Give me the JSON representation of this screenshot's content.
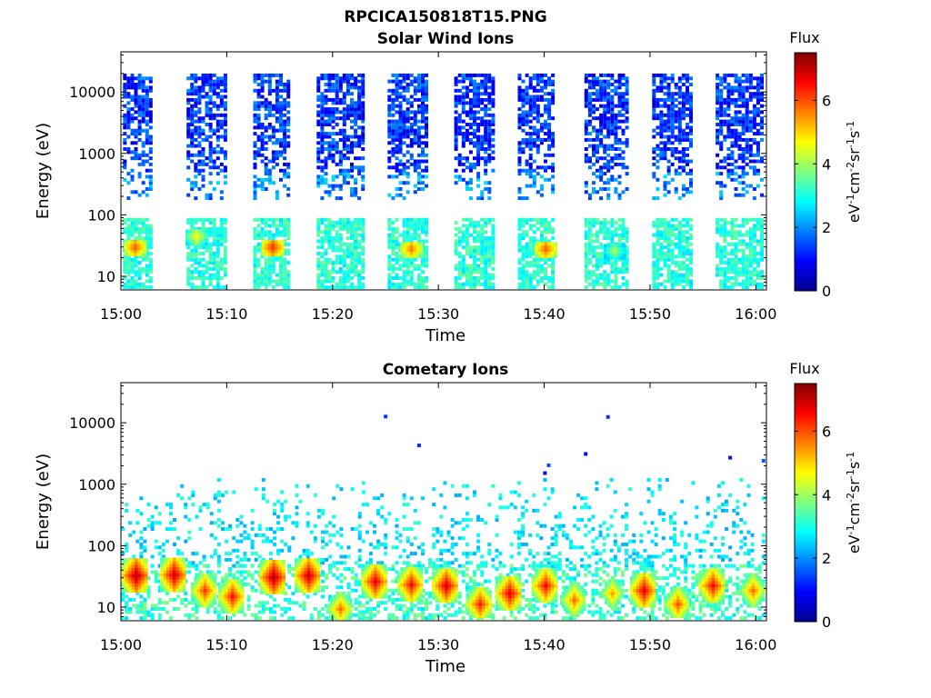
{
  "figure": {
    "title": "RPCICA150818T15.PNG"
  },
  "chart_data": [
    {
      "type": "heatmap",
      "title": "Solar Wind Ions",
      "xlabel": "Time",
      "ylabel": "Energy (eV)",
      "yscale": "log",
      "ylim": [
        6,
        45000
      ],
      "xlim": [
        "15:00",
        "16:01"
      ],
      "x_ticks": [
        "15:00",
        "15:10",
        "15:20",
        "15:30",
        "15:40",
        "15:50",
        "16:00"
      ],
      "y_ticks": [
        "10",
        "100",
        "1000",
        "10000"
      ],
      "grid": false,
      "colorbar": {
        "title": "Flux",
        "label": "eV-1cm-2sr-1s-1",
        "range": [
          0,
          7.5
        ],
        "ticks": [
          "0",
          "2",
          "4",
          "6"
        ],
        "colormap": "jet"
      },
      "pattern": {
        "description_of_data": "periodic sweeps: high-energy low-flux band 200-30000 eV, low-energy core 6-80 eV",
        "active_intervals_min": [
          [
            0.2,
            3.0
          ],
          [
            6.2,
            9.8
          ],
          [
            12.5,
            15.8
          ],
          [
            18.5,
            22.8
          ],
          [
            25.2,
            28.8
          ],
          [
            31.5,
            35.2
          ],
          [
            37.5,
            41.0
          ],
          [
            43.8,
            47.8
          ],
          [
            50.2,
            54.0
          ],
          [
            56.2,
            60.8
          ]
        ],
        "peak_flux_points": [
          {
            "time_min": 1.2,
            "energy_eV": 32,
            "flux": 6.0
          },
          {
            "time_min": 7.0,
            "energy_eV": 48,
            "flux": 4.8
          },
          {
            "time_min": 14.2,
            "energy_eV": 32,
            "flux": 6.3
          },
          {
            "time_min": 27.3,
            "energy_eV": 30,
            "flux": 5.8
          },
          {
            "time_min": 40.0,
            "energy_eV": 30,
            "flux": 6.0
          },
          {
            "time_min": 46.5,
            "energy_eV": 28,
            "flux": 4.2
          }
        ],
        "typical_flux_high_energy": 1.2,
        "typical_flux_low_energy": 3.0
      }
    },
    {
      "type": "heatmap",
      "title": "Cometary Ions",
      "xlabel": "Time",
      "ylabel": "Energy (eV)",
      "yscale": "log",
      "ylim": [
        6,
        45000
      ],
      "xlim": [
        "15:00",
        "16:01"
      ],
      "x_ticks": [
        "15:00",
        "15:10",
        "15:20",
        "15:30",
        "15:40",
        "15:50",
        "16:00"
      ],
      "y_ticks": [
        "10",
        "100",
        "1000",
        "10000"
      ],
      "grid": false,
      "colorbar": {
        "title": "Flux",
        "label": "eV-1cm-2sr-1s-1",
        "range": [
          0,
          7.5
        ],
        "ticks": [
          "0",
          "2",
          "4",
          "6"
        ],
        "colormap": "jet"
      },
      "pattern": {
        "description_of_data": "strong core 10-60 eV with periodic red blobs; sparse scatter up to ~1000 eV",
        "blob_centers": [
          {
            "time_min": 1.3,
            "energy_eV": 35,
            "flux": 7.2
          },
          {
            "time_min": 4.9,
            "energy_eV": 36,
            "flux": 7.0
          },
          {
            "time_min": 7.8,
            "energy_eV": 20,
            "flux": 6.2
          },
          {
            "time_min": 10.4,
            "energy_eV": 16,
            "flux": 6.5
          },
          {
            "time_min": 14.3,
            "energy_eV": 33,
            "flux": 7.2
          },
          {
            "time_min": 17.6,
            "energy_eV": 35,
            "flux": 7.0
          },
          {
            "time_min": 20.6,
            "energy_eV": 10,
            "flux": 5.8
          },
          {
            "time_min": 23.9,
            "energy_eV": 28,
            "flux": 6.8
          },
          {
            "time_min": 27.3,
            "energy_eV": 25,
            "flux": 6.6
          },
          {
            "time_min": 30.6,
            "energy_eV": 24,
            "flux": 6.9
          },
          {
            "time_min": 33.8,
            "energy_eV": 12,
            "flux": 6.4
          },
          {
            "time_min": 36.6,
            "energy_eV": 18,
            "flux": 6.8
          },
          {
            "time_min": 40.0,
            "energy_eV": 24,
            "flux": 6.6
          },
          {
            "time_min": 42.7,
            "energy_eV": 14,
            "flux": 5.8
          },
          {
            "time_min": 46.3,
            "energy_eV": 18,
            "flux": 5.4
          },
          {
            "time_min": 49.3,
            "energy_eV": 20,
            "flux": 6.8
          },
          {
            "time_min": 52.5,
            "energy_eV": 12,
            "flux": 6.0
          },
          {
            "time_min": 55.8,
            "energy_eV": 24,
            "flux": 6.6
          },
          {
            "time_min": 59.6,
            "energy_eV": 20,
            "flux": 5.8
          }
        ],
        "typical_flux_scatter": 2.2
      }
    }
  ]
}
